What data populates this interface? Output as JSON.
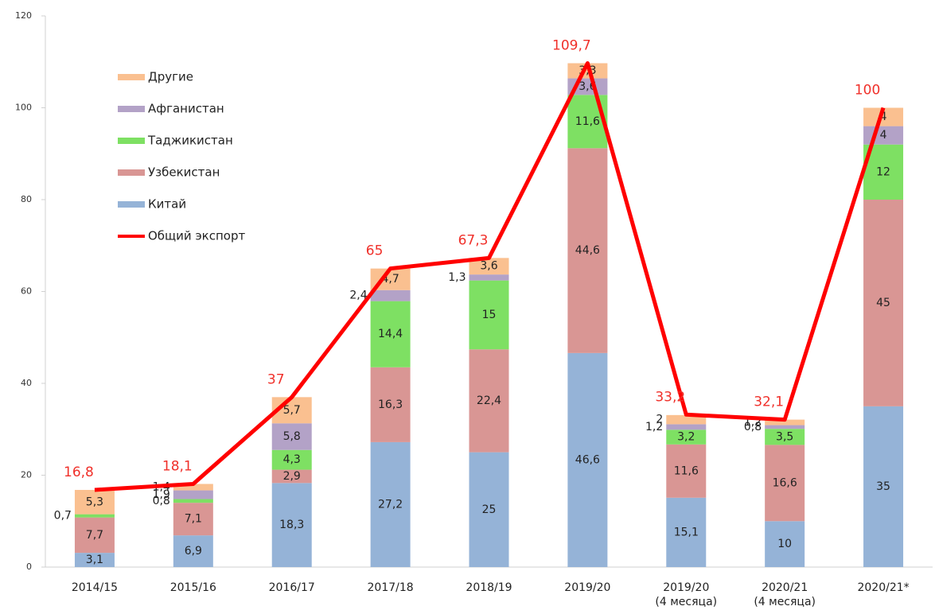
{
  "chart_data": {
    "type": "bar",
    "stacked": true,
    "categories": [
      "2014/15",
      "2015/16",
      "2016/17",
      "2017/18",
      "2018/19",
      "2019/20",
      "2019/20\n(4 месяца)",
      "2020/21\n(4 месяца)",
      "2020/21*"
    ],
    "series": [
      {
        "name": "Китай",
        "color": "#95b3d7",
        "values": [
          3.1,
          6.9,
          18.3,
          27.2,
          25,
          46.6,
          15.1,
          10,
          35
        ],
        "value_labels": [
          "3,1",
          "6,9",
          "18,3",
          "27,2",
          "25",
          "46,6",
          "15,1",
          "10",
          "35"
        ]
      },
      {
        "name": "Узбекистан",
        "color": "#d99694",
        "values": [
          7.7,
          7.1,
          2.9,
          16.3,
          22.4,
          44.6,
          11.6,
          16.6,
          45
        ],
        "value_labels": [
          "7,7",
          "7,1",
          "2,9",
          "16,3",
          "22,4",
          "44,6",
          "11,6",
          "16,6",
          "45"
        ]
      },
      {
        "name": "Таджикистан",
        "color": "#7ee063",
        "values": [
          0.7,
          0.8,
          4.3,
          14.4,
          15,
          11.6,
          3.2,
          3.5,
          12
        ],
        "value_labels": [
          "0,7",
          "0,8",
          "4,3",
          "14,4",
          "15",
          "11,6",
          "3,2",
          "3,5",
          "12"
        ]
      },
      {
        "name": "Афганистан",
        "color": "#b3a2c7",
        "values": [
          null,
          1.9,
          5.8,
          2.4,
          1.3,
          3.6,
          1.2,
          0.8,
          4
        ],
        "value_labels": [
          null,
          "1,9",
          "5,8",
          "2,4",
          "1,3",
          "3,6",
          "1,2",
          "0,8",
          "4"
        ]
      },
      {
        "name": "Другие",
        "color": "#fac090",
        "values": [
          5.3,
          1.4,
          5.7,
          4.7,
          3.6,
          3.3,
          2,
          1.2,
          4
        ],
        "value_labels": [
          "5,3",
          "1,4",
          "5,7",
          "4,7",
          "3,6",
          "3,3",
          "2",
          "1,2",
          "4"
        ]
      },
      {
        "name": "Общий экспорт",
        "type": "line",
        "color": "#ff0000",
        "values": [
          16.8,
          18.1,
          37,
          65,
          67.3,
          109.7,
          33.2,
          32.1,
          100
        ],
        "value_labels": [
          "16,8",
          "18,1",
          "37",
          "65",
          "67,3",
          "109,7",
          "33,2",
          "32,1",
          "100"
        ]
      }
    ],
    "ylim": [
      0,
      120
    ],
    "yticks": [
      0,
      20,
      40,
      60,
      80,
      100,
      120
    ]
  }
}
